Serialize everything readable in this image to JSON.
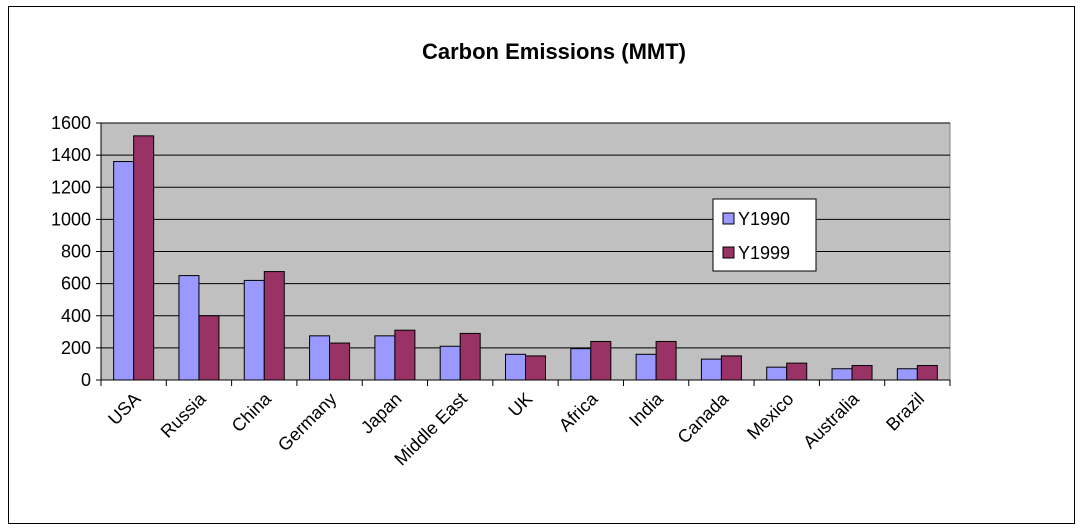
{
  "chart_data": {
    "type": "bar",
    "title": "Carbon Emissions (MMT)",
    "xlabel": "",
    "ylabel": "",
    "ylim": [
      0,
      1600
    ],
    "yticks": [
      0,
      200,
      400,
      600,
      800,
      1000,
      1200,
      1400,
      1600
    ],
    "categories": [
      "USA",
      "Russia",
      "China",
      "Germany",
      "Japan",
      "Middle East",
      "UK",
      "Africa",
      "India",
      "Canada",
      "Mexico",
      "Australia",
      "Brazil"
    ],
    "series": [
      {
        "name": "Y1990",
        "color": "#9999ff",
        "values": [
          1360,
          650,
          620,
          275,
          275,
          210,
          160,
          195,
          160,
          130,
          80,
          70,
          70
        ]
      },
      {
        "name": "Y1999",
        "color": "#993366",
        "values": [
          1520,
          400,
          675,
          230,
          310,
          290,
          150,
          240,
          240,
          150,
          105,
          90,
          90
        ]
      }
    ],
    "grid": true,
    "plot_background": "#c0c0c0",
    "legend_placement": "right"
  }
}
